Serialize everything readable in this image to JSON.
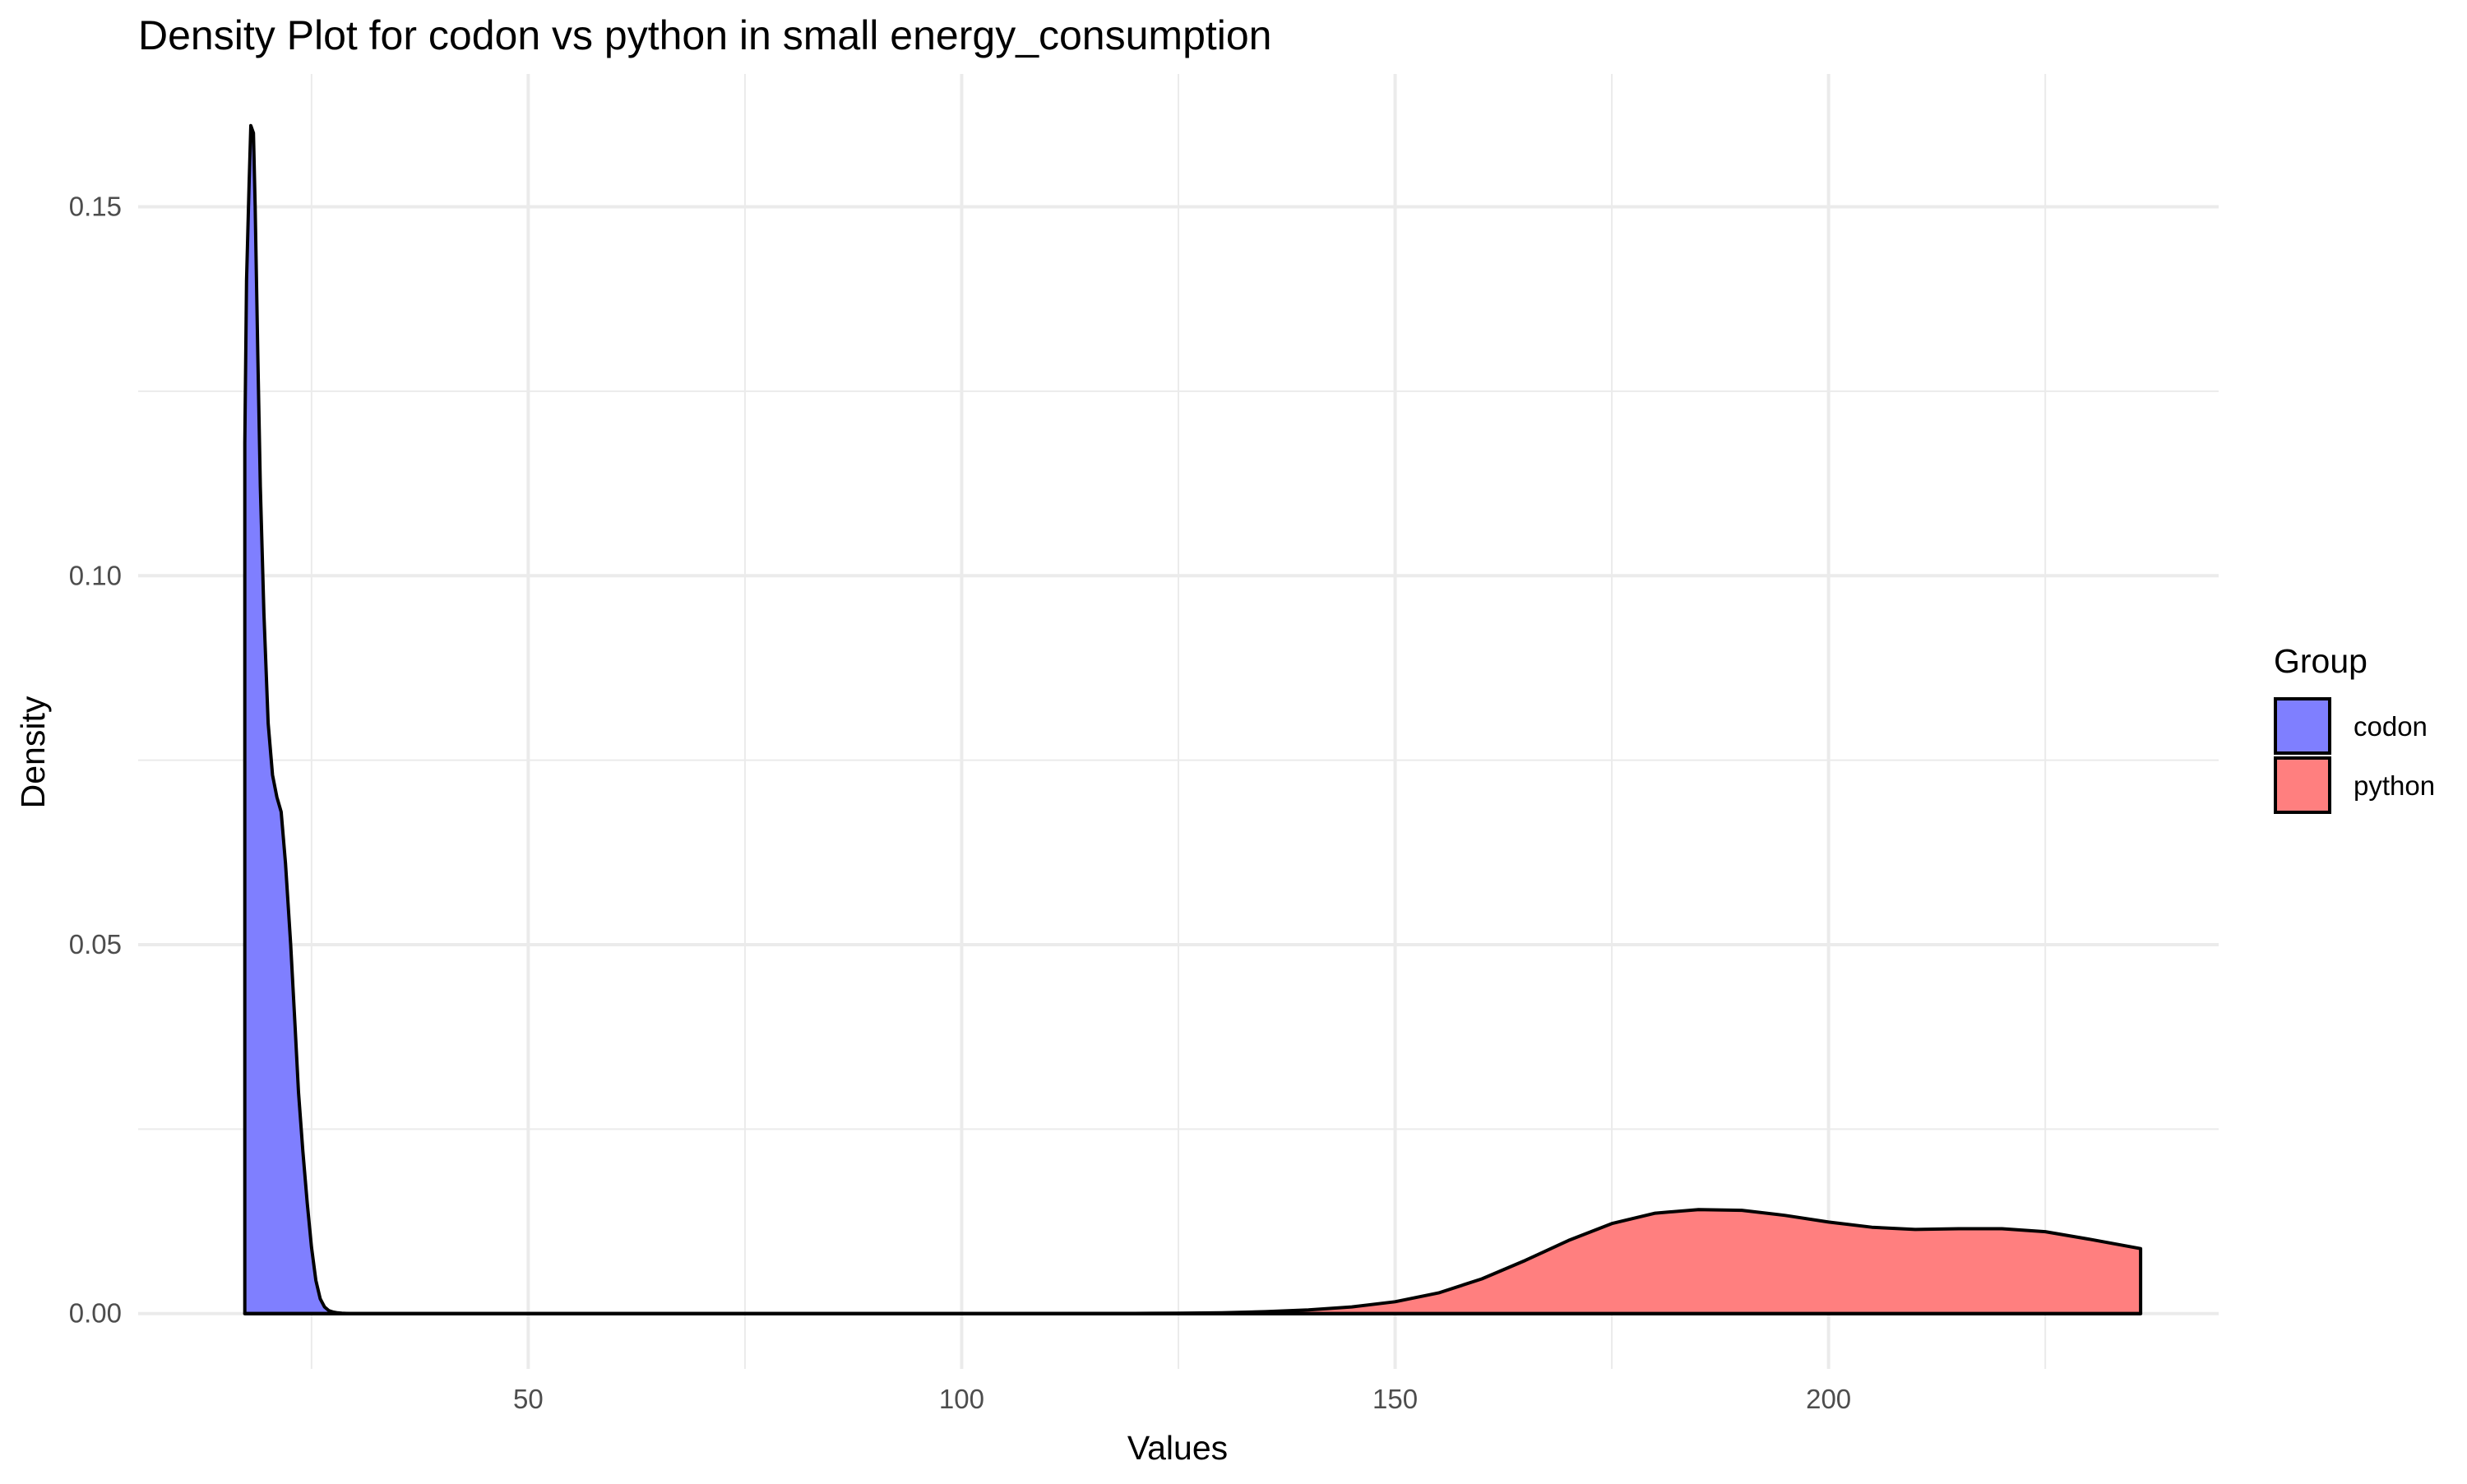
{
  "chart_data": {
    "type": "area",
    "title": "Density Plot for codon vs python in small energy_consumption",
    "xlabel": "Values",
    "ylabel": "Density",
    "xlim": [
      5,
      245
    ],
    "ylim": [
      -0.0075,
      0.168
    ],
    "x_ticks": [
      50,
      100,
      150,
      200
    ],
    "x_tick_labels": [
      "50",
      "100",
      "150",
      "200"
    ],
    "x_minor_ticks": [
      25,
      75,
      125,
      175,
      225
    ],
    "y_ticks": [
      0.0,
      0.05,
      0.1,
      0.15
    ],
    "y_tick_labels": [
      "0.00",
      "0.05",
      "0.10",
      "0.15"
    ],
    "y_minor_ticks": [
      0.025,
      0.075,
      0.125
    ],
    "grid": true,
    "legend": {
      "title": "Group",
      "position": "right"
    },
    "series": [
      {
        "name": "codon",
        "color": "#7f7fff",
        "fill_opacity": 0.5,
        "x": [
          17.3,
          17.5,
          17.8,
          18.0,
          18.3,
          18.5,
          18.8,
          19.1,
          19.5,
          20.0,
          20.5,
          21.0,
          21.5,
          22.0,
          22.6,
          23.1,
          23.5,
          24.0,
          24.5,
          25.0,
          25.5,
          26.0,
          26.5,
          27.0,
          27.5,
          28.0,
          28.5,
          29.5,
          31.0,
          35.0,
          60.0,
          100.0,
          130.0,
          170.0,
          200.0,
          236.0
        ],
        "y": [
          0.118,
          0.14,
          0.153,
          0.161,
          0.16,
          0.15,
          0.13,
          0.112,
          0.095,
          0.08,
          0.073,
          0.07,
          0.068,
          0.061,
          0.05,
          0.039,
          0.03,
          0.022,
          0.015,
          0.009,
          0.0045,
          0.002,
          0.0009,
          0.0004,
          0.0002,
          0.0001,
          5e-05,
          0.0,
          0.0,
          0.0,
          0.0,
          0.0,
          0.0,
          0.0,
          0.0,
          0.0
        ]
      },
      {
        "name": "python",
        "color": "#ff7f7f",
        "fill_opacity": 0.5,
        "x": [
          17.3,
          60.0,
          100.0,
          120.0,
          125.0,
          130.0,
          135.0,
          140.0,
          145.0,
          150.0,
          155.0,
          160.0,
          165.0,
          170.0,
          175.0,
          180.0,
          185.0,
          190.0,
          195.0,
          200.0,
          205.0,
          210.0,
          215.0,
          220.0,
          225.0,
          230.0,
          236.0
        ],
        "y": [
          0.0,
          0.0,
          0.0,
          2e-05,
          5e-05,
          0.0001,
          0.00025,
          0.0005,
          0.0009,
          0.0016,
          0.0028,
          0.0047,
          0.0072,
          0.0099,
          0.0122,
          0.0136,
          0.0141,
          0.014,
          0.0133,
          0.0124,
          0.0117,
          0.0114,
          0.0115,
          0.0115,
          0.0111,
          0.0101,
          0.0088
        ]
      }
    ]
  }
}
